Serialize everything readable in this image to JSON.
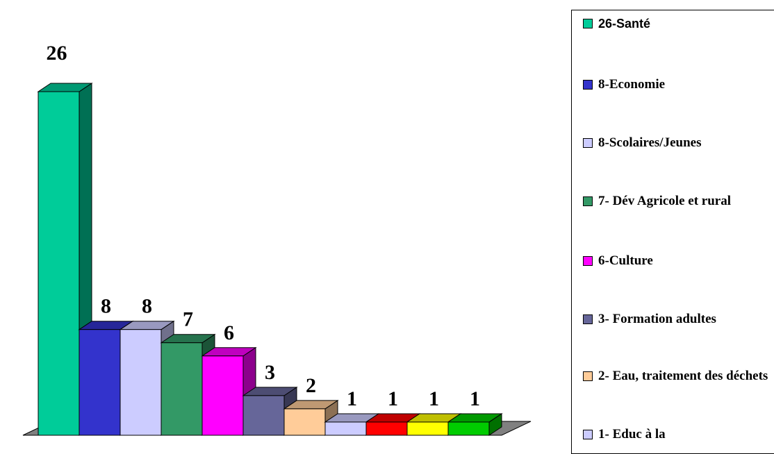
{
  "chart_data": {
    "type": "bar",
    "categories": [
      "26-Santé",
      "8-Economie",
      "8-Scolaires/Jeunes",
      "7- Dév Agricole et rural",
      "6-Culture",
      "3- Formation adultes",
      "2- Eau, traitement des déchets",
      "1- Educ à la",
      "",
      "",
      ""
    ],
    "values": [
      26,
      8,
      8,
      7,
      6,
      3,
      2,
      1,
      1,
      1,
      1
    ],
    "colors": [
      "#00CC99",
      "#3333CC",
      "#CCCCFF",
      "#339966",
      "#FF00FF",
      "#666699",
      "#FFCC99",
      "#CCCCFF",
      "#FF0000",
      "#FFFF00",
      "#00CC00"
    ],
    "data_labels": [
      "26",
      "8",
      "8",
      "7",
      "6",
      "3",
      "2",
      "1",
      "1",
      "1",
      "1"
    ],
    "ylim": [
      0,
      26
    ],
    "legend_position": "right",
    "grid": false,
    "style": "3d-column"
  },
  "legend": {
    "items": [
      {
        "label": "26-Santé",
        "color": "#00CC99"
      },
      {
        "label": "8-Economie",
        "color": "#3333CC"
      },
      {
        "label": "8-Scolaires/Jeunes",
        "color": "#CCCCFF"
      },
      {
        "label": "7- Dév Agricole et rural",
        "color": "#339966"
      },
      {
        "label": "6-Culture",
        "color": "#FF00FF"
      },
      {
        "label": "3- Formation adultes",
        "color": "#666699"
      },
      {
        "label": "2- Eau, traitement des déchets",
        "color": "#FFCC99"
      },
      {
        "label": "1- Educ à la",
        "color": "#CCCCFF"
      }
    ]
  }
}
